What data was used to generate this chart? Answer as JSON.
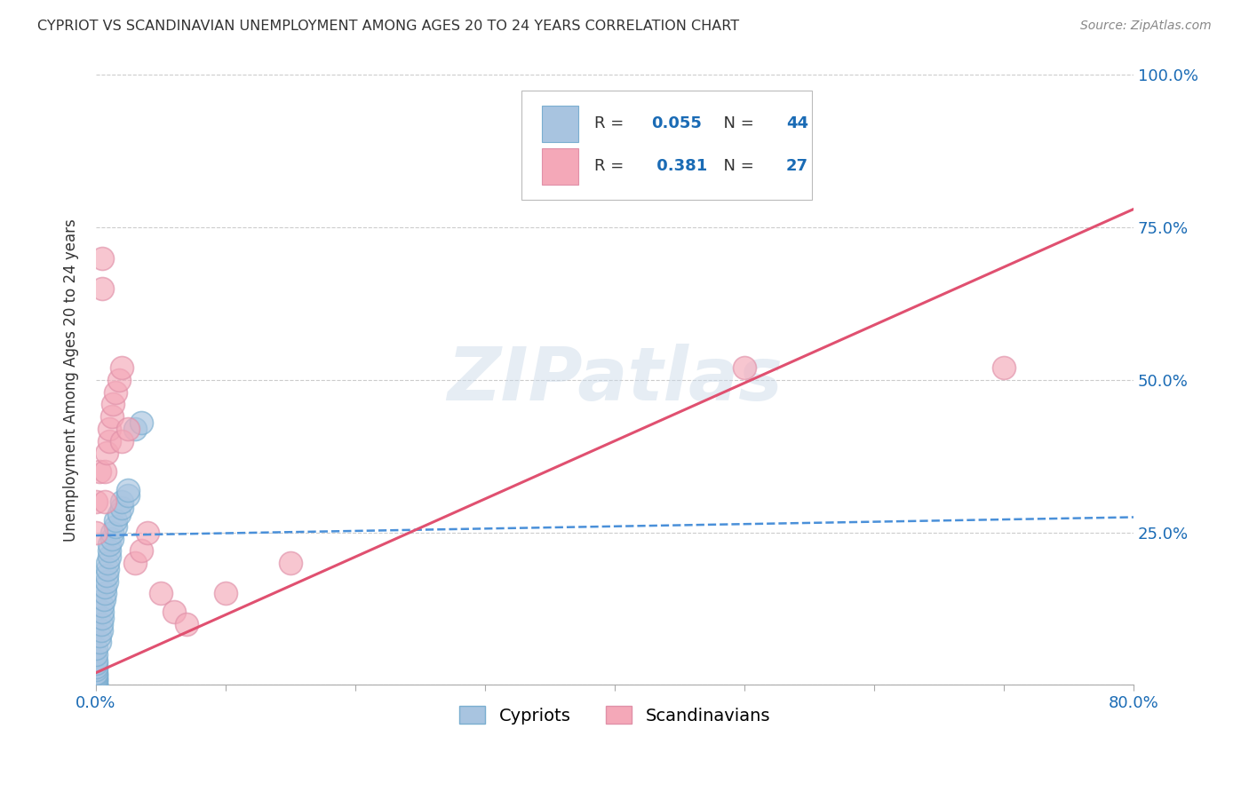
{
  "title": "CYPRIOT VS SCANDINAVIAN UNEMPLOYMENT AMONG AGES 20 TO 24 YEARS CORRELATION CHART",
  "source": "Source: ZipAtlas.com",
  "ylabel": "Unemployment Among Ages 20 to 24 years",
  "xlim": [
    0.0,
    0.8
  ],
  "ylim": [
    0.0,
    1.0
  ],
  "xtick_positions": [
    0.0,
    0.1,
    0.2,
    0.3,
    0.4,
    0.5,
    0.6,
    0.7,
    0.8
  ],
  "xticklabels": [
    "0.0%",
    "",
    "",
    "",
    "",
    "",
    "",
    "",
    "80.0%"
  ],
  "ytick_positions": [
    0.0,
    0.25,
    0.5,
    0.75,
    1.0
  ],
  "ytick_labels": [
    "",
    "25.0%",
    "50.0%",
    "75.0%",
    "100.0%"
  ],
  "grid_color": "#cccccc",
  "background_color": "#ffffff",
  "watermark": "ZIPatlas",
  "cypriot_color": "#a8c4e0",
  "cypriot_edge_color": "#7aaed0",
  "scandinavian_color": "#f4a8b8",
  "scandinavian_edge_color": "#e090a8",
  "cypriot_R": 0.055,
  "cypriot_N": 44,
  "scandinavian_R": 0.381,
  "scandinavian_N": 27,
  "cypriot_line_color": "#4a90d9",
  "scandinavian_line_color": "#e05070",
  "label_color": "#1a6bb5",
  "title_color": "#333333",
  "source_color": "#888888",
  "cypriot_label": "Cypriots",
  "scandinavian_label": "Scandinavians",
  "cypriot_scatter_x": [
    0.0,
    0.0,
    0.0,
    0.0,
    0.0,
    0.0,
    0.0,
    0.0,
    0.0,
    0.0,
    0.0,
    0.0,
    0.0,
    0.0,
    0.0,
    0.0,
    0.003,
    0.003,
    0.004,
    0.004,
    0.005,
    0.005,
    0.005,
    0.006,
    0.007,
    0.007,
    0.008,
    0.008,
    0.009,
    0.009,
    0.01,
    0.01,
    0.01,
    0.012,
    0.012,
    0.015,
    0.015,
    0.018,
    0.02,
    0.02,
    0.025,
    0.025,
    0.03,
    0.035
  ],
  "cypriot_scatter_y": [
    0.0,
    0.0,
    0.0,
    0.005,
    0.008,
    0.01,
    0.012,
    0.015,
    0.018,
    0.02,
    0.025,
    0.03,
    0.035,
    0.04,
    0.05,
    0.06,
    0.07,
    0.08,
    0.09,
    0.1,
    0.11,
    0.12,
    0.13,
    0.14,
    0.15,
    0.16,
    0.17,
    0.18,
    0.19,
    0.2,
    0.21,
    0.22,
    0.23,
    0.24,
    0.25,
    0.26,
    0.27,
    0.28,
    0.29,
    0.3,
    0.31,
    0.32,
    0.42,
    0.43
  ],
  "scandinavian_scatter_x": [
    0.0,
    0.0,
    0.003,
    0.005,
    0.005,
    0.007,
    0.007,
    0.008,
    0.01,
    0.01,
    0.012,
    0.013,
    0.015,
    0.018,
    0.02,
    0.02,
    0.025,
    0.03,
    0.035,
    0.04,
    0.05,
    0.06,
    0.07,
    0.1,
    0.15,
    0.5,
    0.7
  ],
  "scandinavian_scatter_y": [
    0.25,
    0.3,
    0.35,
    0.65,
    0.7,
    0.3,
    0.35,
    0.38,
    0.4,
    0.42,
    0.44,
    0.46,
    0.48,
    0.5,
    0.52,
    0.4,
    0.42,
    0.2,
    0.22,
    0.25,
    0.15,
    0.12,
    0.1,
    0.15,
    0.2,
    0.52,
    0.52
  ]
}
